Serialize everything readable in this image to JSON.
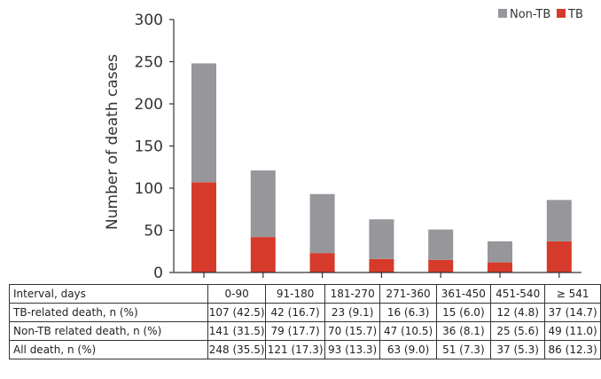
{
  "chart_data": {
    "type": "bar",
    "stacked": true,
    "title": "",
    "xlabel": "",
    "ylabel": "Number of death cases",
    "ylim": [
      0,
      300
    ],
    "yticks": [
      0,
      50,
      100,
      150,
      200,
      250,
      300
    ],
    "grid": false,
    "legend_position": "top-right",
    "categories": [
      "0-90",
      "91-180",
      "181-270",
      "271-360",
      "361-450",
      "451-540",
      "≥ 541"
    ],
    "series": [
      {
        "name": "TB",
        "color": "#d63a2a",
        "values": [
          107,
          42,
          23,
          16,
          15,
          12,
          37
        ]
      },
      {
        "name": "Non-TB",
        "color": "#97979b",
        "values": [
          141,
          79,
          70,
          47,
          36,
          25,
          49
        ]
      }
    ],
    "legend": [
      {
        "label": "Non-TB",
        "color": "#97979b"
      },
      {
        "label": "TB",
        "color": "#d63a2a"
      }
    ]
  },
  "table": {
    "rows": [
      [
        "Interval, days",
        "0-90",
        "91-180",
        "181-270",
        "271-360",
        "361-450",
        "451-540",
        "≥ 541"
      ],
      [
        "TB-related death, n (%)",
        "107 (42.5)",
        "42 (16.7)",
        "23 (9.1)",
        "16 (6.3)",
        "15 (6.0)",
        "12 (4.8)",
        "37 (14.7)"
      ],
      [
        "Non-TB related death, n (%)",
        "141 (31.5)",
        "79 (17.7)",
        "70 (15.7)",
        "47 (10.5)",
        "36 (8.1)",
        "25 (5.6)",
        "49 (11.0)"
      ],
      [
        "All death, n (%)",
        "248 (35.5)",
        "121 (17.3)",
        "93 (13.3)",
        "63 (9.0)",
        "51 (7.3)",
        "37 (5.3)",
        "86 (12.3)"
      ]
    ]
  }
}
